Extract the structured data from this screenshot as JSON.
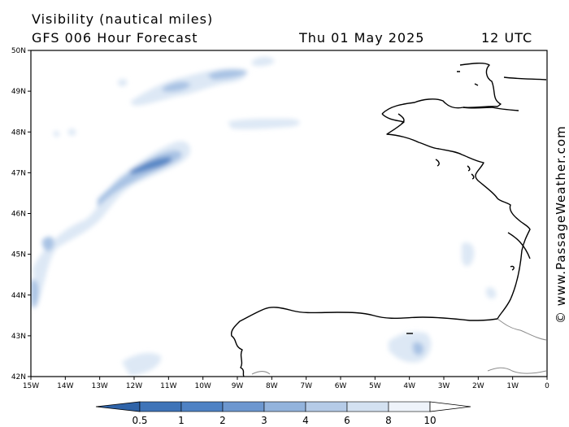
{
  "header": {
    "title": "Visibility (nautical miles)",
    "subtitle": "GFS 006 Hour Forecast",
    "date": "Thu 01 May 2025",
    "time": "12 UTC"
  },
  "credit": "© www.PassageWeather.com",
  "axes": {
    "lat_labels": [
      "50N",
      "49N",
      "48N",
      "47N",
      "46N",
      "45N",
      "44N",
      "43N",
      "42N"
    ],
    "lon_labels": [
      "15W",
      "14W",
      "13W",
      "12W",
      "11W",
      "10W",
      "9W",
      "8W",
      "7W",
      "6W",
      "5W",
      "4W",
      "3W",
      "2W",
      "1W",
      "0"
    ]
  },
  "colorbar": {
    "labels": [
      "0.5",
      "1",
      "2",
      "3",
      "4",
      "6",
      "8",
      "10"
    ],
    "colors": [
      "#3f74b8",
      "#4f82c4",
      "#6d97cf",
      "#93b3dc",
      "#b5cbe7",
      "#d3e1f1",
      "#eef3fa"
    ]
  },
  "colors": {
    "land_outline": "#000000",
    "border": "#8c8c8c",
    "fog_light": "#dde8f5",
    "fog_mid": "#a9c3e4",
    "fog_dark": "#5a88c6"
  }
}
